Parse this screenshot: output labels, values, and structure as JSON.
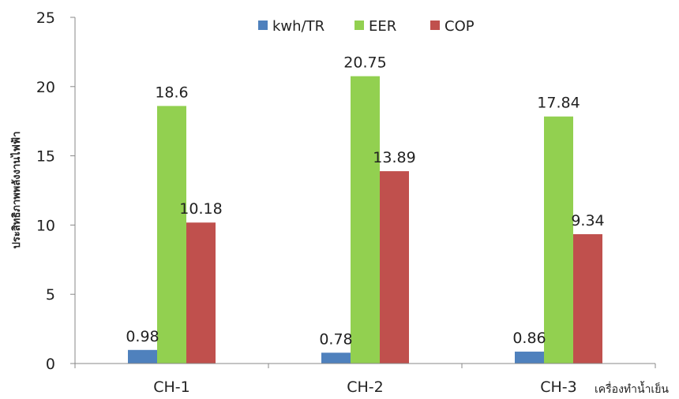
{
  "chart_data": {
    "type": "bar",
    "categories": [
      "CH-1",
      "CH-2",
      "CH-3"
    ],
    "series": [
      {
        "name": "kwh/TR",
        "values": [
          0.98,
          0.78,
          0.86
        ],
        "labels": [
          "0.98",
          "0.78",
          "0.86"
        ],
        "color": "#4f81bd"
      },
      {
        "name": "EER",
        "values": [
          18.6,
          20.75,
          17.84
        ],
        "labels": [
          "18.6",
          "20.75",
          "17.84"
        ],
        "color": "#92d050"
      },
      {
        "name": "COP",
        "values": [
          10.18,
          13.89,
          9.34
        ],
        "labels": [
          "10.18",
          "13.89",
          "9.34"
        ],
        "color": "#c0504d"
      }
    ],
    "ylim": [
      0,
      25
    ],
    "yticks": [
      0,
      5,
      10,
      15,
      20,
      25
    ],
    "ylabel": "ประสิทธิภาพพลังงานไฟฟ้า",
    "xlabel": "เครื่องทำน้ำเย็น",
    "legend_position": "top-right",
    "grid": false
  }
}
